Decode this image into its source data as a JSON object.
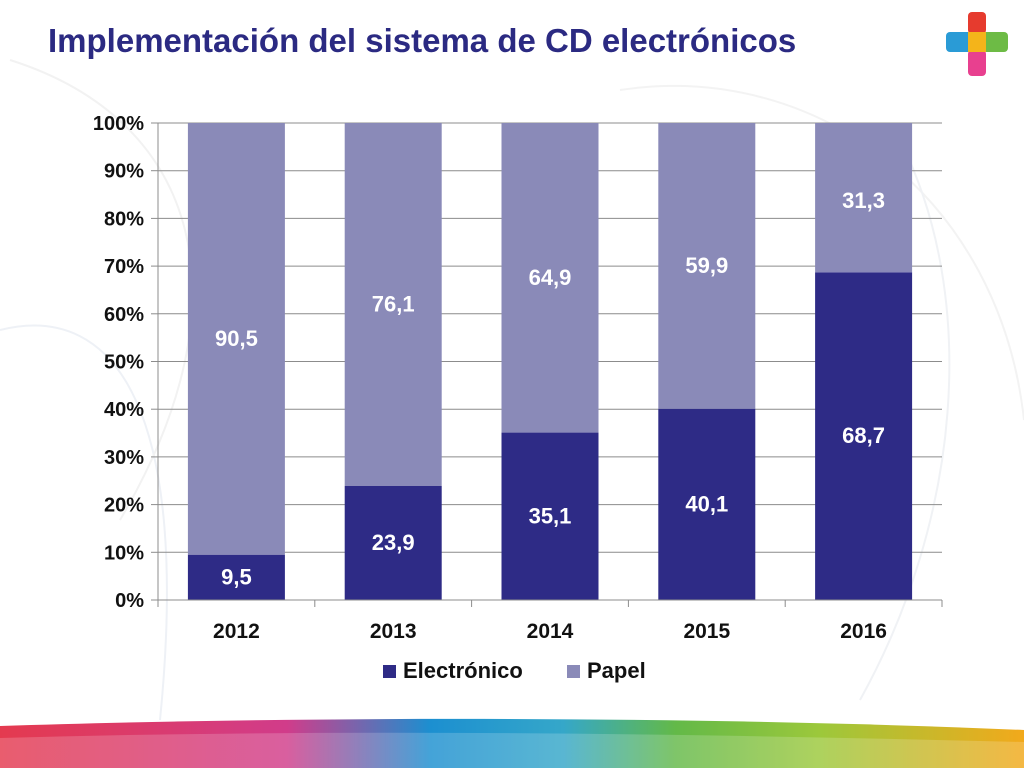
{
  "slide": {
    "title": "Implementación del sistema de CD electrónicos"
  },
  "colors": {
    "title": "#2b2a82",
    "electronico": "#2e2b86",
    "papel": "#8a8ab8",
    "grid": "#8c8c8c"
  },
  "icons": {
    "logo": "cross-logo-icon"
  },
  "chart_data": {
    "type": "bar",
    "stacked": true,
    "percent_stacked": true,
    "categories": [
      "2012",
      "2013",
      "2014",
      "2015",
      "2016"
    ],
    "series": [
      {
        "name": "Electrónico",
        "values": [
          9.5,
          23.9,
          35.1,
          40.1,
          68.7
        ],
        "labels": [
          "9,5",
          "23,9",
          "35,1",
          "40,1",
          "68,7"
        ]
      },
      {
        "name": "Papel",
        "values": [
          90.5,
          76.1,
          64.9,
          59.9,
          31.3
        ],
        "labels": [
          "90,5",
          "76,1",
          "64,9",
          "59,9",
          "31,3"
        ]
      }
    ],
    "yticks": [
      "0%",
      "10%",
      "20%",
      "30%",
      "40%",
      "50%",
      "60%",
      "70%",
      "80%",
      "90%",
      "100%"
    ],
    "ylim": [
      0,
      100
    ],
    "grid": true,
    "legend_position": "bottom"
  }
}
